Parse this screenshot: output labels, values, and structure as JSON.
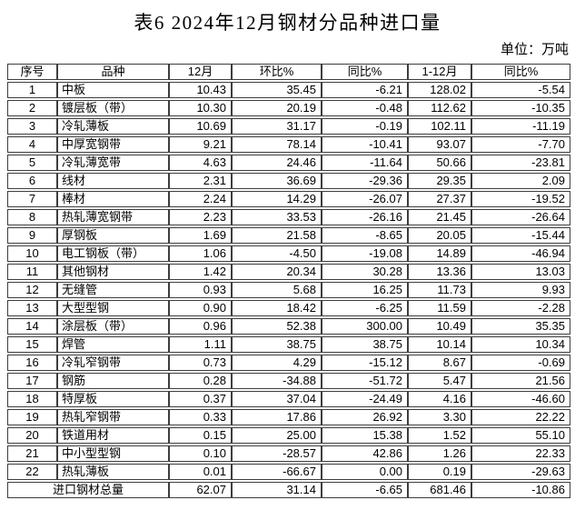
{
  "title": "表6  2024年12月钢材分品种进口量",
  "unit_note": "单位：万吨",
  "colors": {
    "text": "#000000",
    "border": "#3d3d3d",
    "background": "#ffffff"
  },
  "table": {
    "headers": [
      "序号",
      "品种",
      "12月",
      "环比%",
      "同比%",
      "1-12月",
      "同比%"
    ],
    "rows": [
      [
        "1",
        "中板",
        "10.43",
        "35.45",
        "-6.21",
        "128.02",
        "-5.54"
      ],
      [
        "2",
        "镀层板（带）",
        "10.30",
        "20.19",
        "-0.48",
        "112.62",
        "-10.35"
      ],
      [
        "3",
        "冷轧薄板",
        "10.69",
        "31.17",
        "-0.19",
        "102.11",
        "-11.19"
      ],
      [
        "4",
        "中厚宽钢带",
        "9.21",
        "78.14",
        "-10.41",
        "93.07",
        "-7.70"
      ],
      [
        "5",
        "冷轧薄宽带",
        "4.63",
        "24.46",
        "-11.64",
        "50.66",
        "-23.81"
      ],
      [
        "6",
        "线材",
        "2.31",
        "36.69",
        "-29.36",
        "29.35",
        "2.09"
      ],
      [
        "7",
        "棒材",
        "2.24",
        "14.29",
        "-26.07",
        "27.37",
        "-19.52"
      ],
      [
        "8",
        "热轧薄宽钢带",
        "2.23",
        "33.53",
        "-26.16",
        "21.45",
        "-26.64"
      ],
      [
        "9",
        "厚钢板",
        "1.69",
        "21.58",
        "-8.65",
        "20.05",
        "-15.44"
      ],
      [
        "10",
        "电工钢板（带）",
        "1.06",
        "-4.50",
        "-19.08",
        "14.89",
        "-46.94"
      ],
      [
        "11",
        "其他钢材",
        "1.42",
        "20.34",
        "30.28",
        "13.36",
        "13.03"
      ],
      [
        "12",
        "无缝管",
        "0.93",
        "5.68",
        "16.25",
        "11.73",
        "9.93"
      ],
      [
        "13",
        "大型型钢",
        "0.90",
        "18.42",
        "-6.25",
        "11.59",
        "-2.28"
      ],
      [
        "14",
        "涂层板（带）",
        "0.96",
        "52.38",
        "300.00",
        "10.49",
        "35.35"
      ],
      [
        "15",
        "焊管",
        "1.11",
        "38.75",
        "38.75",
        "10.14",
        "10.34"
      ],
      [
        "16",
        "冷轧窄钢带",
        "0.73",
        "4.29",
        "-15.12",
        "8.67",
        "-0.69"
      ],
      [
        "17",
        "钢筋",
        "0.28",
        "-34.88",
        "-51.72",
        "5.47",
        "21.56"
      ],
      [
        "18",
        "特厚板",
        "0.37",
        "37.04",
        "-24.49",
        "4.16",
        "-46.60"
      ],
      [
        "19",
        "热轧窄钢带",
        "0.33",
        "17.86",
        "26.92",
        "3.30",
        "22.22"
      ],
      [
        "20",
        "铁道用材",
        "0.15",
        "25.00",
        "15.38",
        "1.52",
        "55.10"
      ],
      [
        "21",
        "中小型型钢",
        "0.10",
        "-28.57",
        "42.86",
        "1.26",
        "22.33"
      ],
      [
        "22",
        "热轧薄板",
        "0.01",
        "-66.67",
        "0.00",
        "0.19",
        "-29.63"
      ]
    ],
    "total": {
      "label": "进口钢材总量",
      "values": [
        "62.07",
        "31.14",
        "-6.65",
        "681.46",
        "-10.86"
      ]
    }
  }
}
